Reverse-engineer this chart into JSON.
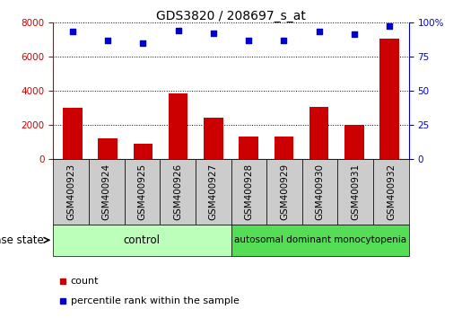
{
  "title": "GDS3820 / 208697_s_at",
  "samples": [
    "GSM400923",
    "GSM400924",
    "GSM400925",
    "GSM400926",
    "GSM400927",
    "GSM400928",
    "GSM400929",
    "GSM400930",
    "GSM400931",
    "GSM400932"
  ],
  "counts": [
    3000,
    1200,
    900,
    3850,
    2400,
    1300,
    1300,
    3050,
    2000,
    7050
  ],
  "percentiles": [
    93,
    87,
    85,
    94,
    92,
    87,
    87,
    93,
    91,
    97
  ],
  "ylim_left": [
    0,
    8000
  ],
  "ylim_right": [
    0,
    100
  ],
  "yticks_left": [
    0,
    2000,
    4000,
    6000,
    8000
  ],
  "yticks_right": [
    0,
    25,
    50,
    75,
    100
  ],
  "bar_color": "#cc0000",
  "dot_color": "#0000cc",
  "control_color": "#bbffbb",
  "disease_color": "#55dd55",
  "label_bg_color": "#cccccc",
  "control_samples": 5,
  "disease_samples": 5,
  "control_label": "control",
  "disease_label": "autosomal dominant monocytopenia",
  "disease_state_label": "disease state",
  "legend_count": "count",
  "legend_percentile": "percentile rank within the sample",
  "title_fontsize": 10,
  "tick_fontsize": 7.5,
  "annotation_fontsize": 8.5,
  "legend_fontsize": 8
}
